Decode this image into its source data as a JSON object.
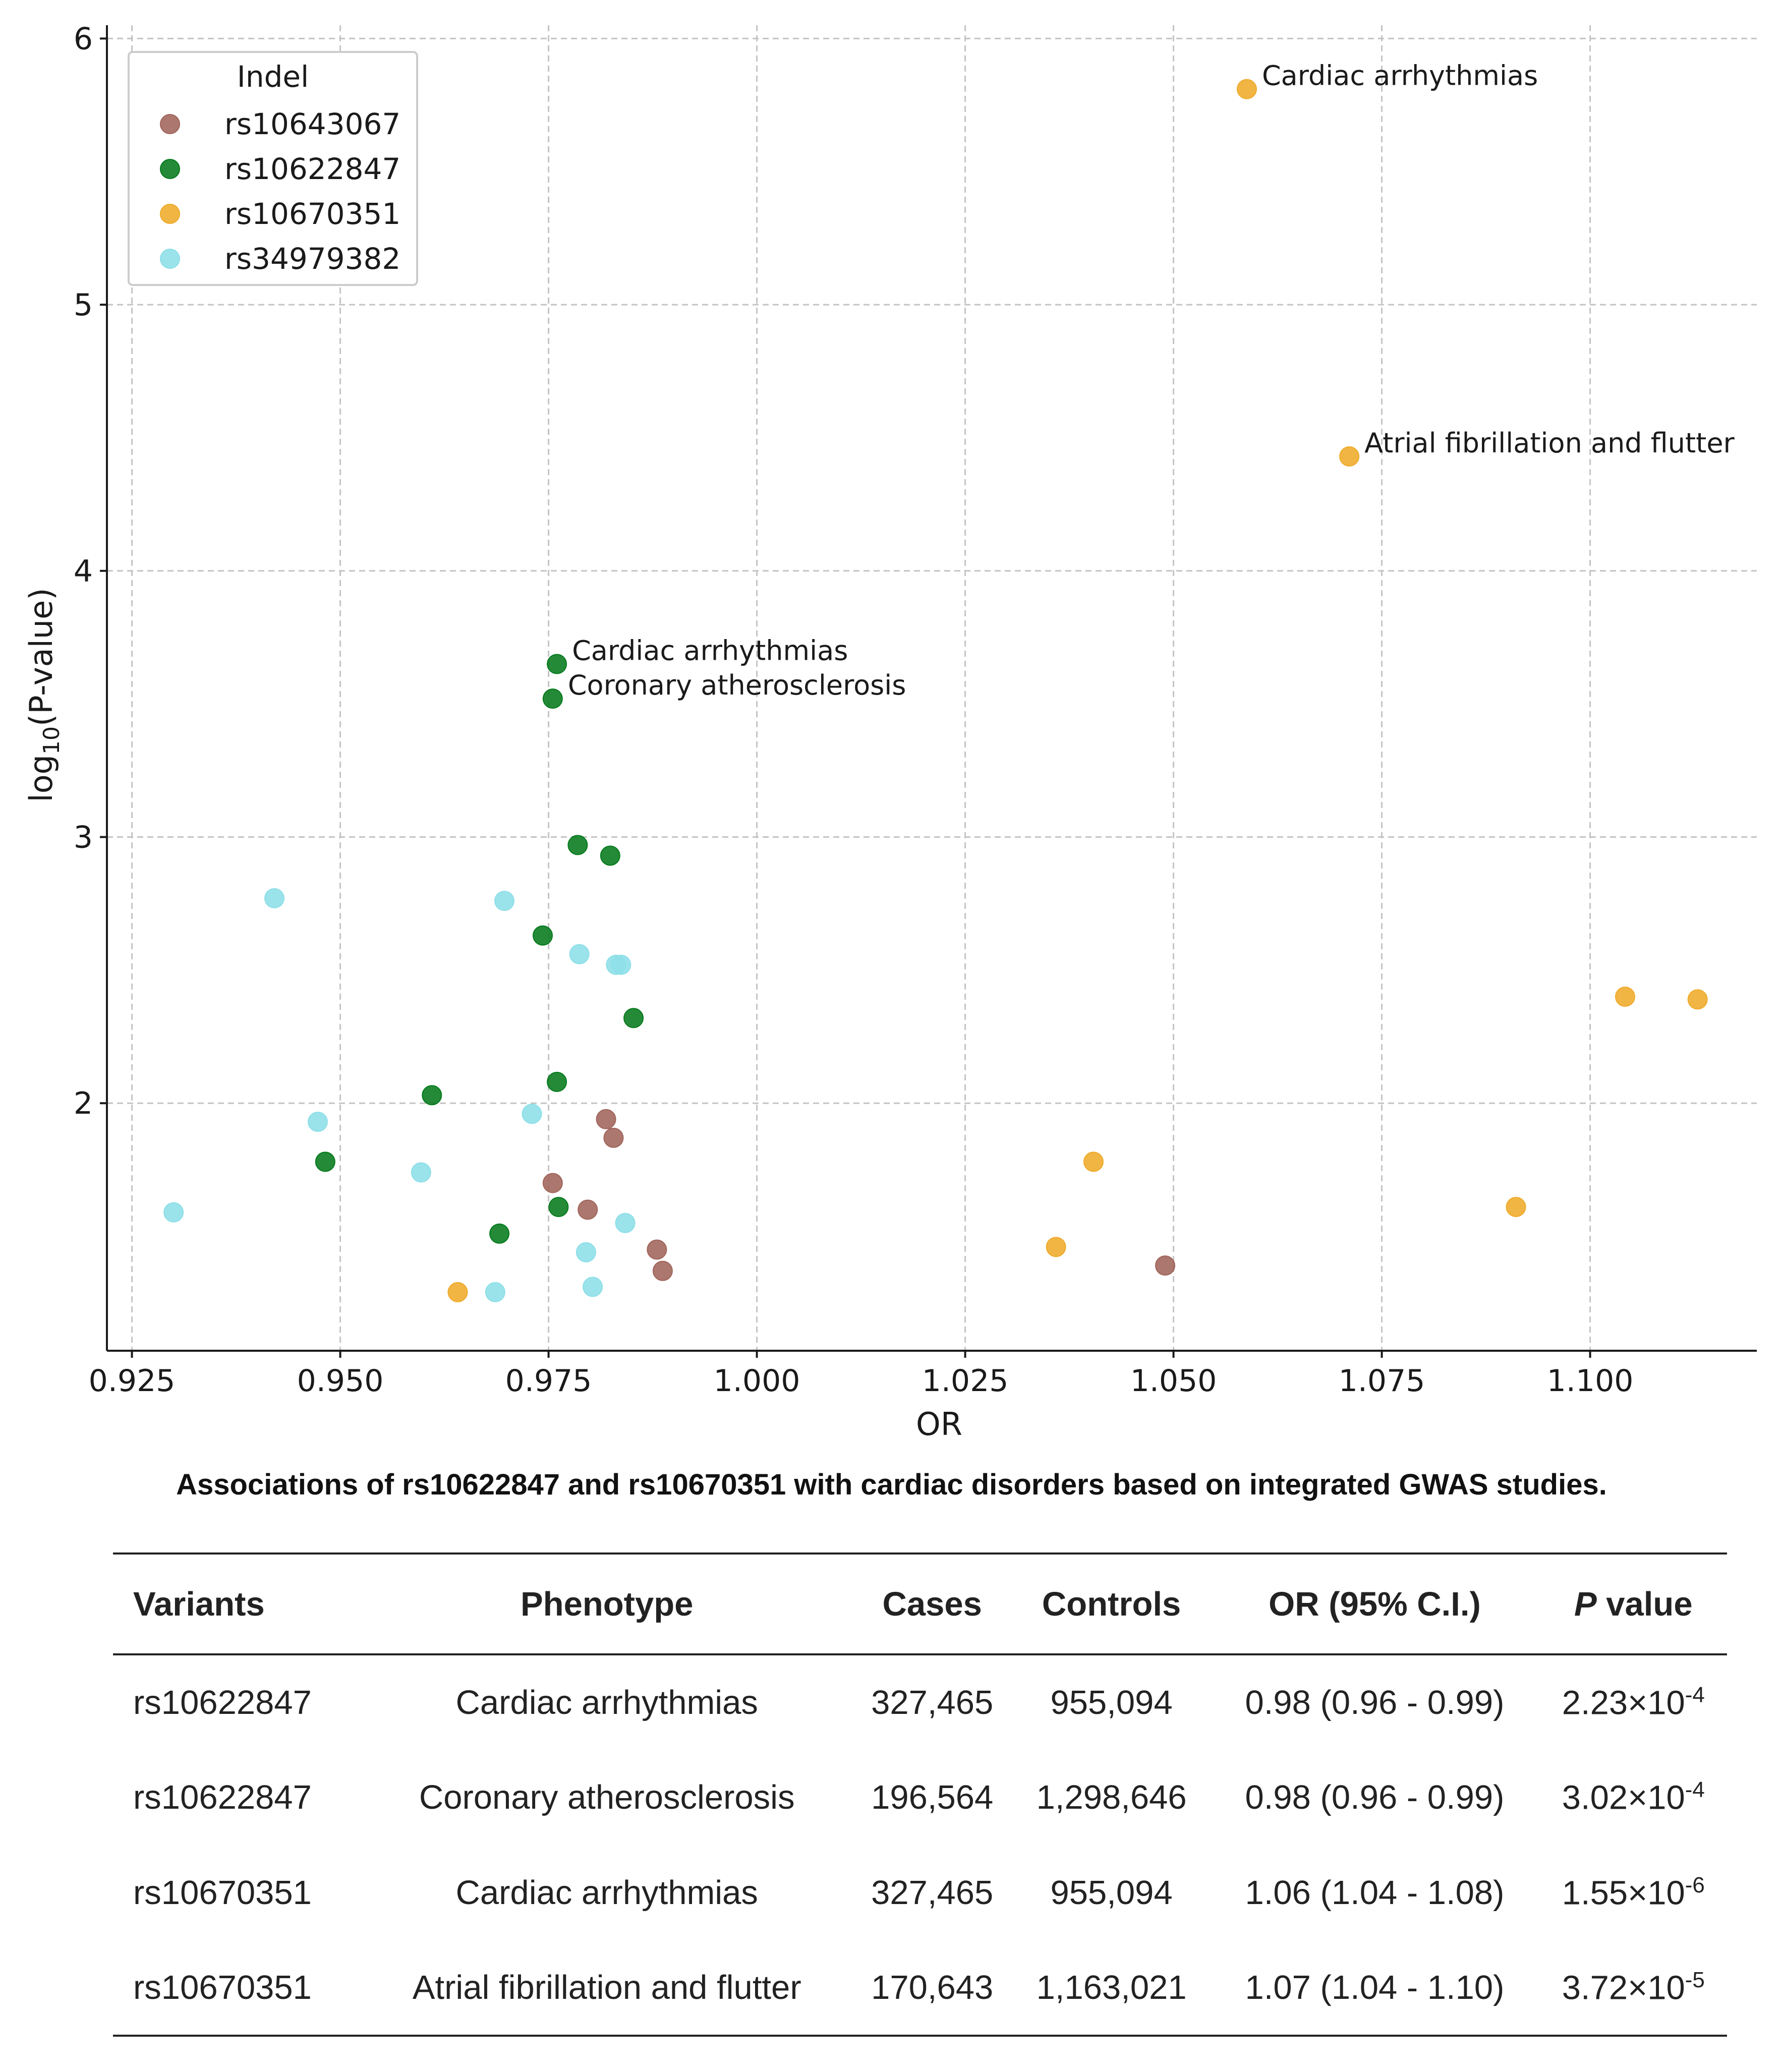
{
  "chart_data": {
    "type": "scatter",
    "xlabel": "OR",
    "ylabel": "log10(P-value)",
    "ylabel_main": "log",
    "ylabel_sub": "10",
    "ylabel_rest": "(P-value)",
    "xlim": [
      0.922,
      1.12
    ],
    "ylim": [
      1.07,
      6.05
    ],
    "xticks": [
      0.925,
      0.95,
      0.975,
      1.0,
      1.025,
      1.05,
      1.075,
      1.1
    ],
    "xtick_labels": [
      "0.925",
      "0.950",
      "0.975",
      "1.000",
      "1.025",
      "1.050",
      "1.075",
      "1.100"
    ],
    "yticks": [
      2,
      3,
      4,
      5,
      6
    ],
    "ytick_labels": [
      "2",
      "3",
      "4",
      "5",
      "6"
    ],
    "grid": true,
    "legend": {
      "title": "Indel",
      "position": "top-left"
    },
    "series": [
      {
        "name": "rs10643067",
        "color": "#a0645a",
        "points": [
          {
            "x": 0.9755,
            "y": 1.7
          },
          {
            "x": 0.9797,
            "y": 1.6
          },
          {
            "x": 0.9819,
            "y": 1.94
          },
          {
            "x": 0.9828,
            "y": 1.87
          },
          {
            "x": 0.988,
            "y": 1.45
          },
          {
            "x": 0.9887,
            "y": 1.37
          },
          {
            "x": 1.049,
            "y": 1.39
          }
        ]
      },
      {
        "name": "rs10622847",
        "color": "#067a1c",
        "points": [
          {
            "x": 0.976,
            "y": 3.65,
            "label": "Cardiac arrhythmias"
          },
          {
            "x": 0.9755,
            "y": 3.52,
            "label": "Coronary atherosclerosis"
          },
          {
            "x": 0.9785,
            "y": 2.97
          },
          {
            "x": 0.9824,
            "y": 2.93
          },
          {
            "x": 0.9743,
            "y": 2.63
          },
          {
            "x": 0.9852,
            "y": 2.32
          },
          {
            "x": 0.976,
            "y": 2.08
          },
          {
            "x": 0.961,
            "y": 2.03
          },
          {
            "x": 0.9482,
            "y": 1.78
          },
          {
            "x": 0.9762,
            "y": 1.61
          },
          {
            "x": 0.9691,
            "y": 1.51
          }
        ]
      },
      {
        "name": "rs10670351",
        "color": "#efab2a",
        "points": [
          {
            "x": 1.0588,
            "y": 5.81,
            "label": "Cardiac arrhythmias"
          },
          {
            "x": 1.0711,
            "y": 4.43,
            "label": "Atrial fibrillation and flutter"
          },
          {
            "x": 1.1042,
            "y": 2.4
          },
          {
            "x": 1.1129,
            "y": 2.39
          },
          {
            "x": 1.0404,
            "y": 1.78
          },
          {
            "x": 1.0911,
            "y": 1.61
          },
          {
            "x": 1.0359,
            "y": 1.46
          },
          {
            "x": 0.9641,
            "y": 1.29
          }
        ]
      },
      {
        "name": "rs34979382",
        "color": "#8ddfe8",
        "points": [
          {
            "x": 0.9421,
            "y": 2.77
          },
          {
            "x": 0.9697,
            "y": 2.76
          },
          {
            "x": 0.9787,
            "y": 2.56
          },
          {
            "x": 0.9831,
            "y": 2.52
          },
          {
            "x": 0.9837,
            "y": 2.52
          },
          {
            "x": 0.973,
            "y": 1.96
          },
          {
            "x": 0.9473,
            "y": 1.93
          },
          {
            "x": 0.9597,
            "y": 1.74
          },
          {
            "x": 0.93,
            "y": 1.59
          },
          {
            "x": 0.9842,
            "y": 1.55
          },
          {
            "x": 0.9795,
            "y": 1.44
          },
          {
            "x": 0.9803,
            "y": 1.31
          },
          {
            "x": 0.9686,
            "y": 1.29
          }
        ]
      }
    ]
  },
  "caption": "Associations of rs10622847 and rs10670351 with cardiac disorders based on integrated GWAS studies.",
  "table": {
    "headers": {
      "variants": "Variants",
      "phenotype": "Phenotype",
      "cases": "Cases",
      "controls": "Controls",
      "or": "OR (95% C.I.)",
      "p_italic": "P",
      "p_rest": " value"
    },
    "rows": [
      {
        "variant": "rs10622847",
        "phenotype": "Cardiac arrhythmias",
        "cases": "327,465",
        "controls": "955,094",
        "or": "0.98 (0.96 - 0.99)",
        "p_base": "2.23×10",
        "p_exp": "-4"
      },
      {
        "variant": "rs10622847",
        "phenotype": "Coronary atherosclerosis",
        "cases": "196,564",
        "controls": "1,298,646",
        "or": "0.98 (0.96 - 0.99)",
        "p_base": "3.02×10",
        "p_exp": "-4"
      },
      {
        "variant": "rs10670351",
        "phenotype": "Cardiac arrhythmias",
        "cases": "327,465",
        "controls": "955,094",
        "or": "1.06 (1.04 - 1.08)",
        "p_base": "1.55×10",
        "p_exp": "-6"
      },
      {
        "variant": "rs10670351",
        "phenotype": "Atrial fibrillation and flutter",
        "cases": "170,643",
        "controls": "1,163,021",
        "or": "1.07 (1.04 - 1.10)",
        "p_base": "3.72×10",
        "p_exp": "-5"
      }
    ]
  }
}
